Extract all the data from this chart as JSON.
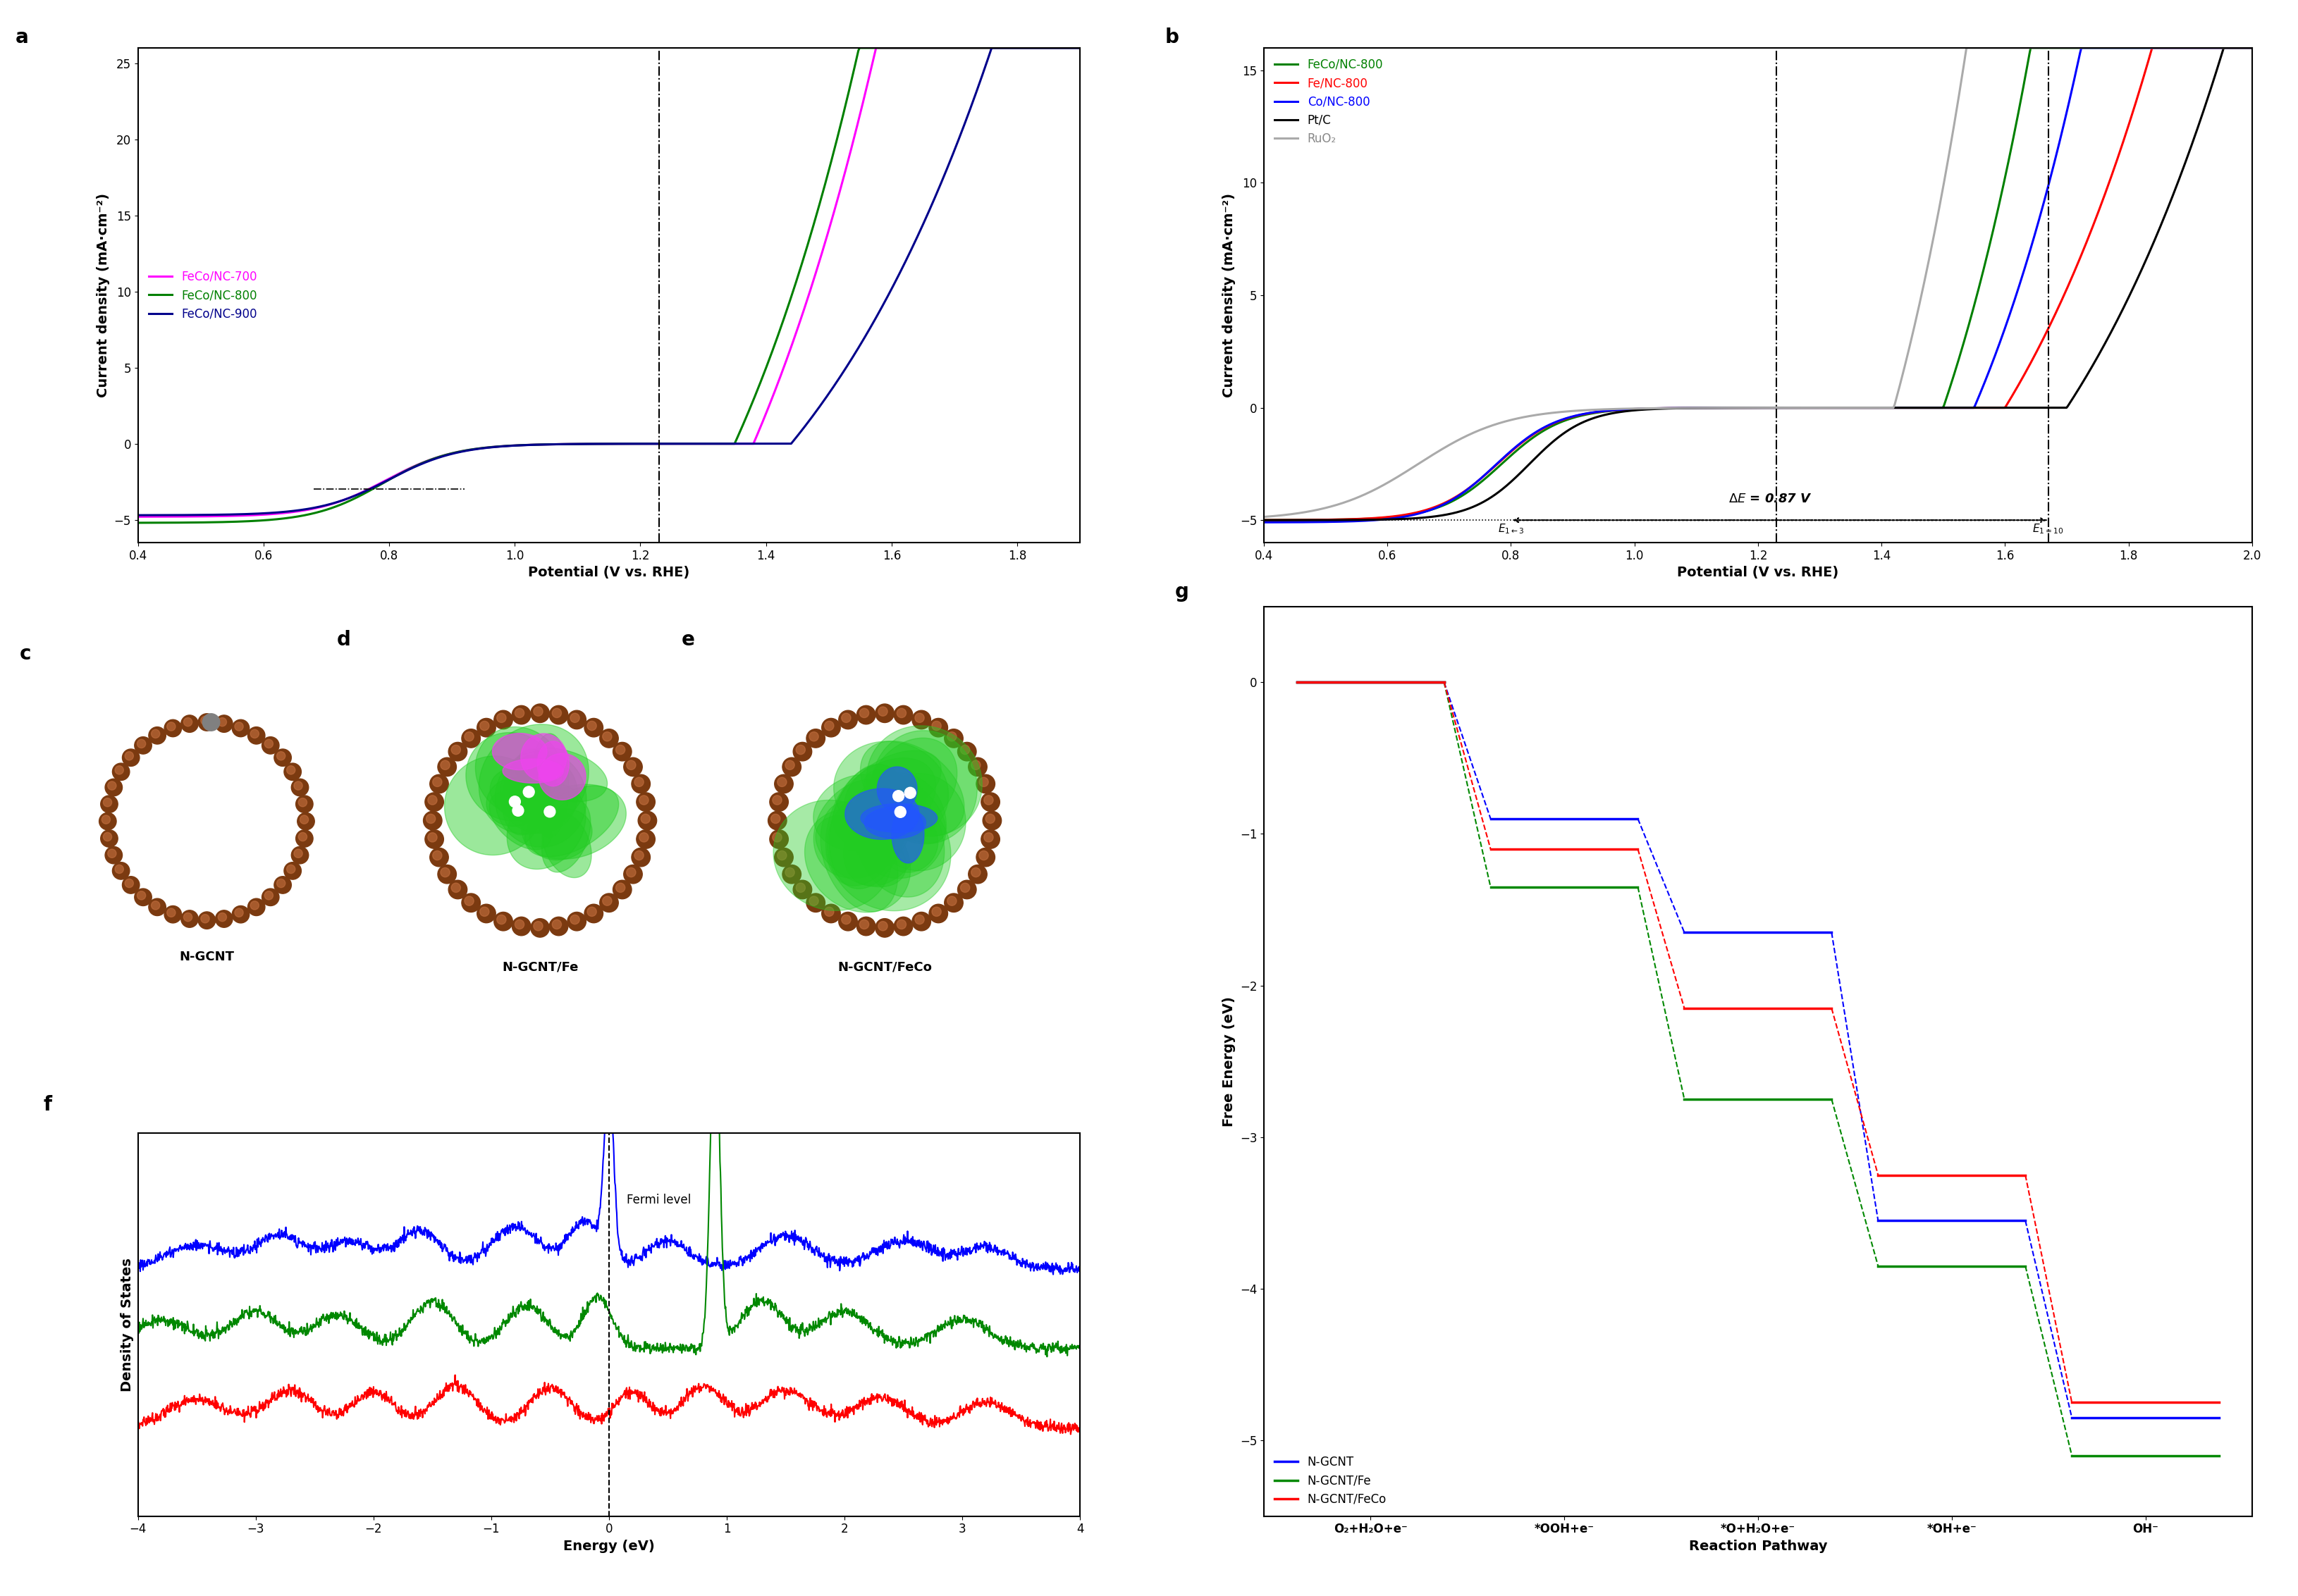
{
  "fig_width": 32.6,
  "fig_height": 22.65,
  "panel_a": {
    "xlabel": "Potential (V vs. RHE)",
    "ylabel": "Current density (mA·cm⁻²)",
    "xlim": [
      0.4,
      1.9
    ],
    "ylim": [
      -6.5,
      26
    ],
    "yticks": [
      -5,
      0,
      5,
      10,
      15,
      20,
      25
    ],
    "xticks": [
      0.4,
      0.6,
      0.8,
      1.0,
      1.2,
      1.4,
      1.6,
      1.8
    ],
    "vline_x": 1.23,
    "label": "a",
    "legend_labels": [
      "FeCo/NC-700",
      "FeCo/NC-800",
      "FeCo/NC-900"
    ],
    "legend_colors": [
      "#ff00ff",
      "#008000",
      "#00008B"
    ]
  },
  "panel_b": {
    "xlabel": "Potential (V vs. RHE)",
    "ylabel": "Current density (mA·cm⁻²)",
    "xlim": [
      0.4,
      2.0
    ],
    "ylim": [
      -6,
      16
    ],
    "yticks": [
      -5,
      0,
      5,
      10,
      15
    ],
    "xticks": [
      0.4,
      0.6,
      0.8,
      1.0,
      1.2,
      1.4,
      1.6,
      1.8,
      2.0
    ],
    "vline1_x": 1.23,
    "vline2_x": 1.67,
    "label": "b",
    "legend_labels": [
      "FeCo/NC-800",
      "Fe/NC-800",
      "Co/NC-800",
      "Pt/C",
      "RuO₂"
    ],
    "legend_colors": [
      "#008000",
      "#ff0000",
      "#0000ff",
      "#000000",
      "#aaaaaa"
    ]
  },
  "panel_f": {
    "xlabel": "Energy (eV)",
    "ylabel": "Density of States",
    "xlim": [
      -4,
      4
    ],
    "xticks": [
      -4,
      -3,
      -2,
      -1,
      0,
      1,
      2,
      3,
      4
    ],
    "label": "f",
    "fermi_label": "Fermi level",
    "colors": [
      "#0000ff",
      "#008000",
      "#ff0000"
    ]
  },
  "panel_g": {
    "xlabel": "Reaction Pathway",
    "ylabel": "Free Energy (eV)",
    "ylim": [
      -5.5,
      0.5
    ],
    "yticks": [
      -5,
      -4,
      -3,
      -2,
      -1,
      0
    ],
    "label": "g",
    "x_labels": [
      "O₂+H₂O+e⁻",
      "*OOH+e⁻",
      "*O+H₂O+e⁻",
      "*OH+e⁻",
      "OH⁻"
    ],
    "legend_labels": [
      "N-GCNT",
      "N-GCNT/Fe",
      "N-GCNT/FeCo"
    ],
    "legend_colors": [
      "#0000ff",
      "#008800",
      "#ff0000"
    ],
    "ngcnt_energies": [
      0.0,
      -0.9,
      -1.65,
      -3.55,
      -4.85
    ],
    "ngcnt_fe_energies": [
      0.0,
      -1.35,
      -2.75,
      -3.85,
      -5.1
    ],
    "ngcnt_feco_energies": [
      0.0,
      -1.1,
      -2.15,
      -3.25,
      -4.75
    ]
  }
}
